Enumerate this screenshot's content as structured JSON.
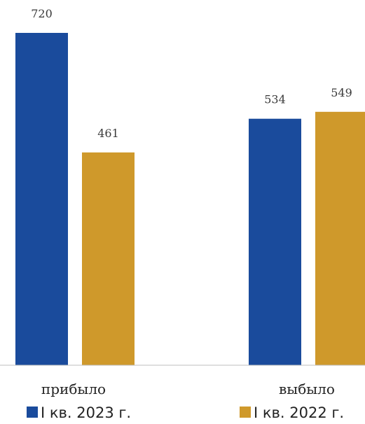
{
  "chart_data": {
    "type": "bar",
    "categories": [
      "прибыло",
      "выбыло"
    ],
    "series": [
      {
        "name": "I кв. 2023 г.",
        "color": "#1a4b9c",
        "values": [
          720,
          534
        ]
      },
      {
        "name": "I кв. 2022 г.",
        "color": "#cf992b",
        "values": [
          461,
          549
        ]
      }
    ],
    "ylim": [
      0,
      720
    ],
    "grid": false,
    "legend": "bottom"
  }
}
